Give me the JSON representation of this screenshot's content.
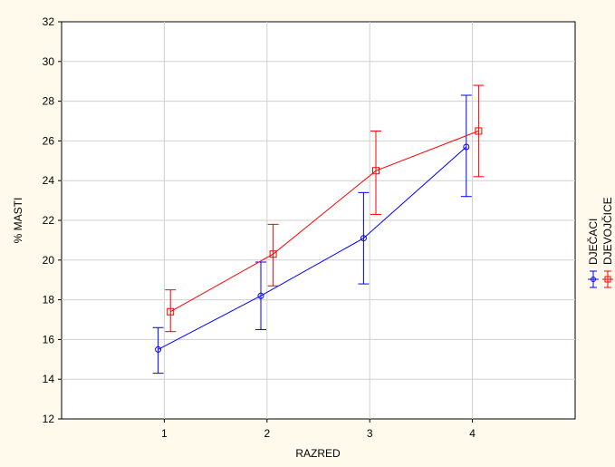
{
  "chart_data": {
    "type": "line",
    "title": "",
    "xlabel": "RAZRED",
    "ylabel": "% MASTI",
    "x": [
      1,
      2,
      3,
      4
    ],
    "xlim": [
      0,
      5
    ],
    "ylim": [
      12,
      32
    ],
    "yticks": [
      12,
      14,
      16,
      18,
      20,
      22,
      24,
      26,
      28,
      30,
      32
    ],
    "xticks": [
      1,
      2,
      3,
      4
    ],
    "grid": true,
    "legend_position": "right, vertical",
    "error_bars": true,
    "series": [
      {
        "name": "DJEČACI",
        "color": "#0000ff",
        "marker": "circle",
        "values": [
          15.5,
          18.2,
          21.1,
          25.7
        ],
        "upper": [
          16.6,
          19.9,
          23.4,
          28.3
        ],
        "lower": [
          14.3,
          16.5,
          18.8,
          23.2
        ]
      },
      {
        "name": "DJEVOJČICE",
        "color": "#ff0000",
        "marker": "square",
        "values": [
          17.4,
          20.3,
          24.5,
          26.5
        ],
        "upper": [
          18.5,
          21.8,
          26.5,
          28.8
        ],
        "lower": [
          16.4,
          18.7,
          22.3,
          24.2
        ]
      }
    ]
  }
}
